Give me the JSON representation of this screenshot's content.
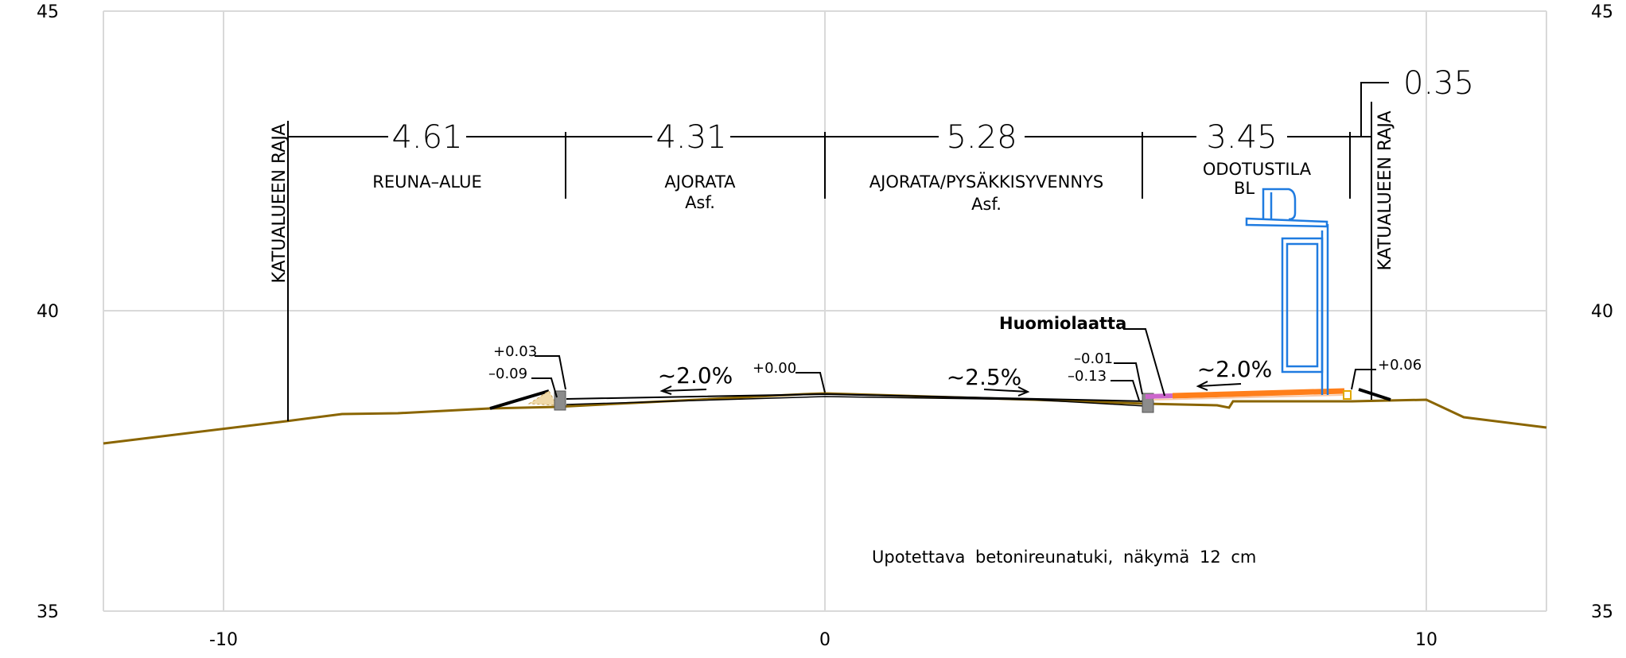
{
  "chart_data": {
    "type": "diagram",
    "xlim": [
      -12,
      12
    ],
    "ylim": [
      35,
      45
    ],
    "x_ticks": [
      "-10",
      "0",
      "10"
    ],
    "y_ticks_left": [
      "45",
      "40",
      "35"
    ],
    "y_ticks_right": [
      "45",
      "40",
      "35"
    ],
    "dimensions": [
      "4.61",
      "4.31",
      "5.28",
      "3.45",
      "0.35"
    ],
    "zones": [
      {
        "name": "REUNA–ALUE",
        "sub": ""
      },
      {
        "name": "AJORATA",
        "sub": "Asf."
      },
      {
        "name": "AJORATA/PYSÄKKISYVENNYS",
        "sub": "Asf."
      },
      {
        "name": "ODOTUSTILA",
        "sub": "BL"
      }
    ],
    "boundary_labels": [
      "KATUALUEEN RAJA",
      "KATUALUEEN RAJA"
    ],
    "slopes": [
      "~2.0%",
      "~2.5%",
      "~2.0%"
    ],
    "elevations": {
      "left_top": "+0.03",
      "left_bottom": "–0.09",
      "center": "+0.00",
      "right_top": "–0.01",
      "right_bottom": "–0.13",
      "far_right": "+0.06"
    },
    "callout": "Huomiolaatta",
    "note": "Upotettava betonireunatuki, näkymä 12 cm",
    "colors": {
      "ground": "#8a6500",
      "shelter": "#1f7be0",
      "warning_tile": "#ff7f1a",
      "grid": "#d9d9d9"
    }
  }
}
